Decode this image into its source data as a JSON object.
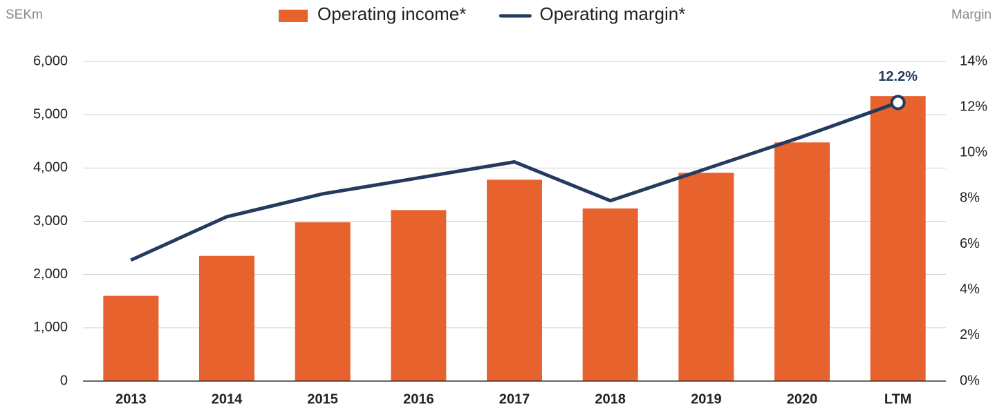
{
  "chart_data": {
    "type": "bar_line",
    "y_label": "SEKm",
    "y2_label": "Margin",
    "categories": [
      "2013",
      "2014",
      "2015",
      "2016",
      "2017",
      "2018",
      "2019",
      "2020",
      "LTM"
    ],
    "series": [
      {
        "name": "Operating income*",
        "type": "bar",
        "color": "#e8622e",
        "values": [
          1600,
          2350,
          2980,
          3210,
          3780,
          3240,
          3910,
          4480,
          5350
        ]
      },
      {
        "name": "Operating margin*",
        "type": "line",
        "axis": "y2",
        "color": "#243a5e",
        "values": [
          5.3,
          7.2,
          8.2,
          8.9,
          9.6,
          7.9,
          9.3,
          10.7,
          12.2
        ],
        "value_labels": [
          null,
          null,
          null,
          null,
          null,
          null,
          null,
          null,
          "12.2%"
        ]
      }
    ],
    "ylim": [
      0,
      6000
    ],
    "yticks": [
      0,
      {
        "value": 1000,
        "label": "1,000"
      },
      {
        "value": 2000,
        "label": "2,000"
      },
      {
        "value": 3000,
        "label": "3,000"
      },
      {
        "value": 4000,
        "label": "4,000"
      },
      {
        "value": 5000,
        "label": "5,000"
      },
      {
        "value": 6000,
        "label": "6,000"
      }
    ],
    "y2lim": [
      0,
      14
    ],
    "y2ticks": [
      {
        "value": 0,
        "label": "0%"
      },
      {
        "value": 2,
        "label": "2%"
      },
      {
        "value": 4,
        "label": "4%"
      },
      {
        "value": 6,
        "label": "6%"
      },
      {
        "value": 8,
        "label": "8%"
      },
      {
        "value": 10,
        "label": "10%"
      },
      {
        "value": 12,
        "label": "12%"
      },
      {
        "value": 14,
        "label": "14%"
      }
    ],
    "grid": true,
    "legend": "top"
  }
}
